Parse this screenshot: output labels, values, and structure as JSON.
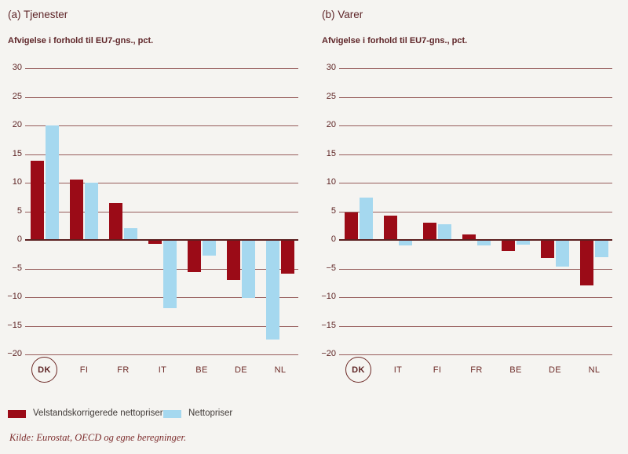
{
  "colors": {
    "background": "#f5f4f1",
    "bar_dark_red": "#9b0b17",
    "bar_light_blue": "#a5d8ef",
    "text_maroon": "#5e2528",
    "gridline": "#854141",
    "zero_line": "#5c2020",
    "legend_text": "#403a37",
    "footer_text": "#7d2d2d"
  },
  "chart_data": [
    {
      "type": "bar",
      "title": "(a) Tjenester",
      "axis_title": "Afvigelse i forhold til EU7-gns., pct.",
      "categories": [
        "DK",
        "FI",
        "FR",
        "IT",
        "BE",
        "DE",
        "NL"
      ],
      "series": [
        {
          "name": "Velstandskorrigerede nettopriser",
          "color_key": "bar_dark_red",
          "values": [
            13.8,
            10.5,
            6.5,
            -0.7,
            -5.6,
            -7.0,
            -5.9
          ]
        },
        {
          "name": "Nettopriser",
          "color_key": "bar_light_blue",
          "values": [
            20.0,
            10.0,
            2.1,
            -11.9,
            -2.8,
            -10.1,
            -17.4
          ]
        }
      ],
      "ylim": [
        -20,
        30
      ],
      "ytick_step": 5,
      "grid": true,
      "highlighted_category": "DK",
      "reversed_bar_order_categories": [
        "NL"
      ]
    },
    {
      "type": "bar",
      "title": "(b) Varer",
      "axis_title": "Afvigelse i forhold til EU7-gns., pct.",
      "categories": [
        "DK",
        "IT",
        "FI",
        "FR",
        "BE",
        "DE",
        "NL"
      ],
      "series": [
        {
          "name": "Velstandskorrigerede nettopriser",
          "color_key": "bar_dark_red",
          "values": [
            4.8,
            4.2,
            3.0,
            0.9,
            -1.9,
            -3.1,
            -7.9
          ]
        },
        {
          "name": "Nettopriser",
          "color_key": "bar_light_blue",
          "values": [
            7.4,
            -0.9,
            2.7,
            -1.0,
            -0.8,
            -4.6,
            -3.0
          ]
        }
      ],
      "ylim": [
        -20,
        30
      ],
      "ytick_step": 5,
      "grid": true,
      "highlighted_category": "DK",
      "reversed_bar_order_categories": []
    }
  ],
  "legend": {
    "items": [
      {
        "label": "Velstandskorrigerede nettopriser",
        "color_key": "bar_dark_red"
      },
      {
        "label": "Nettopriser",
        "color_key": "bar_light_blue"
      }
    ]
  },
  "footer": {
    "source": "Kilde: Eurostat, OECD og egne beregninger."
  }
}
